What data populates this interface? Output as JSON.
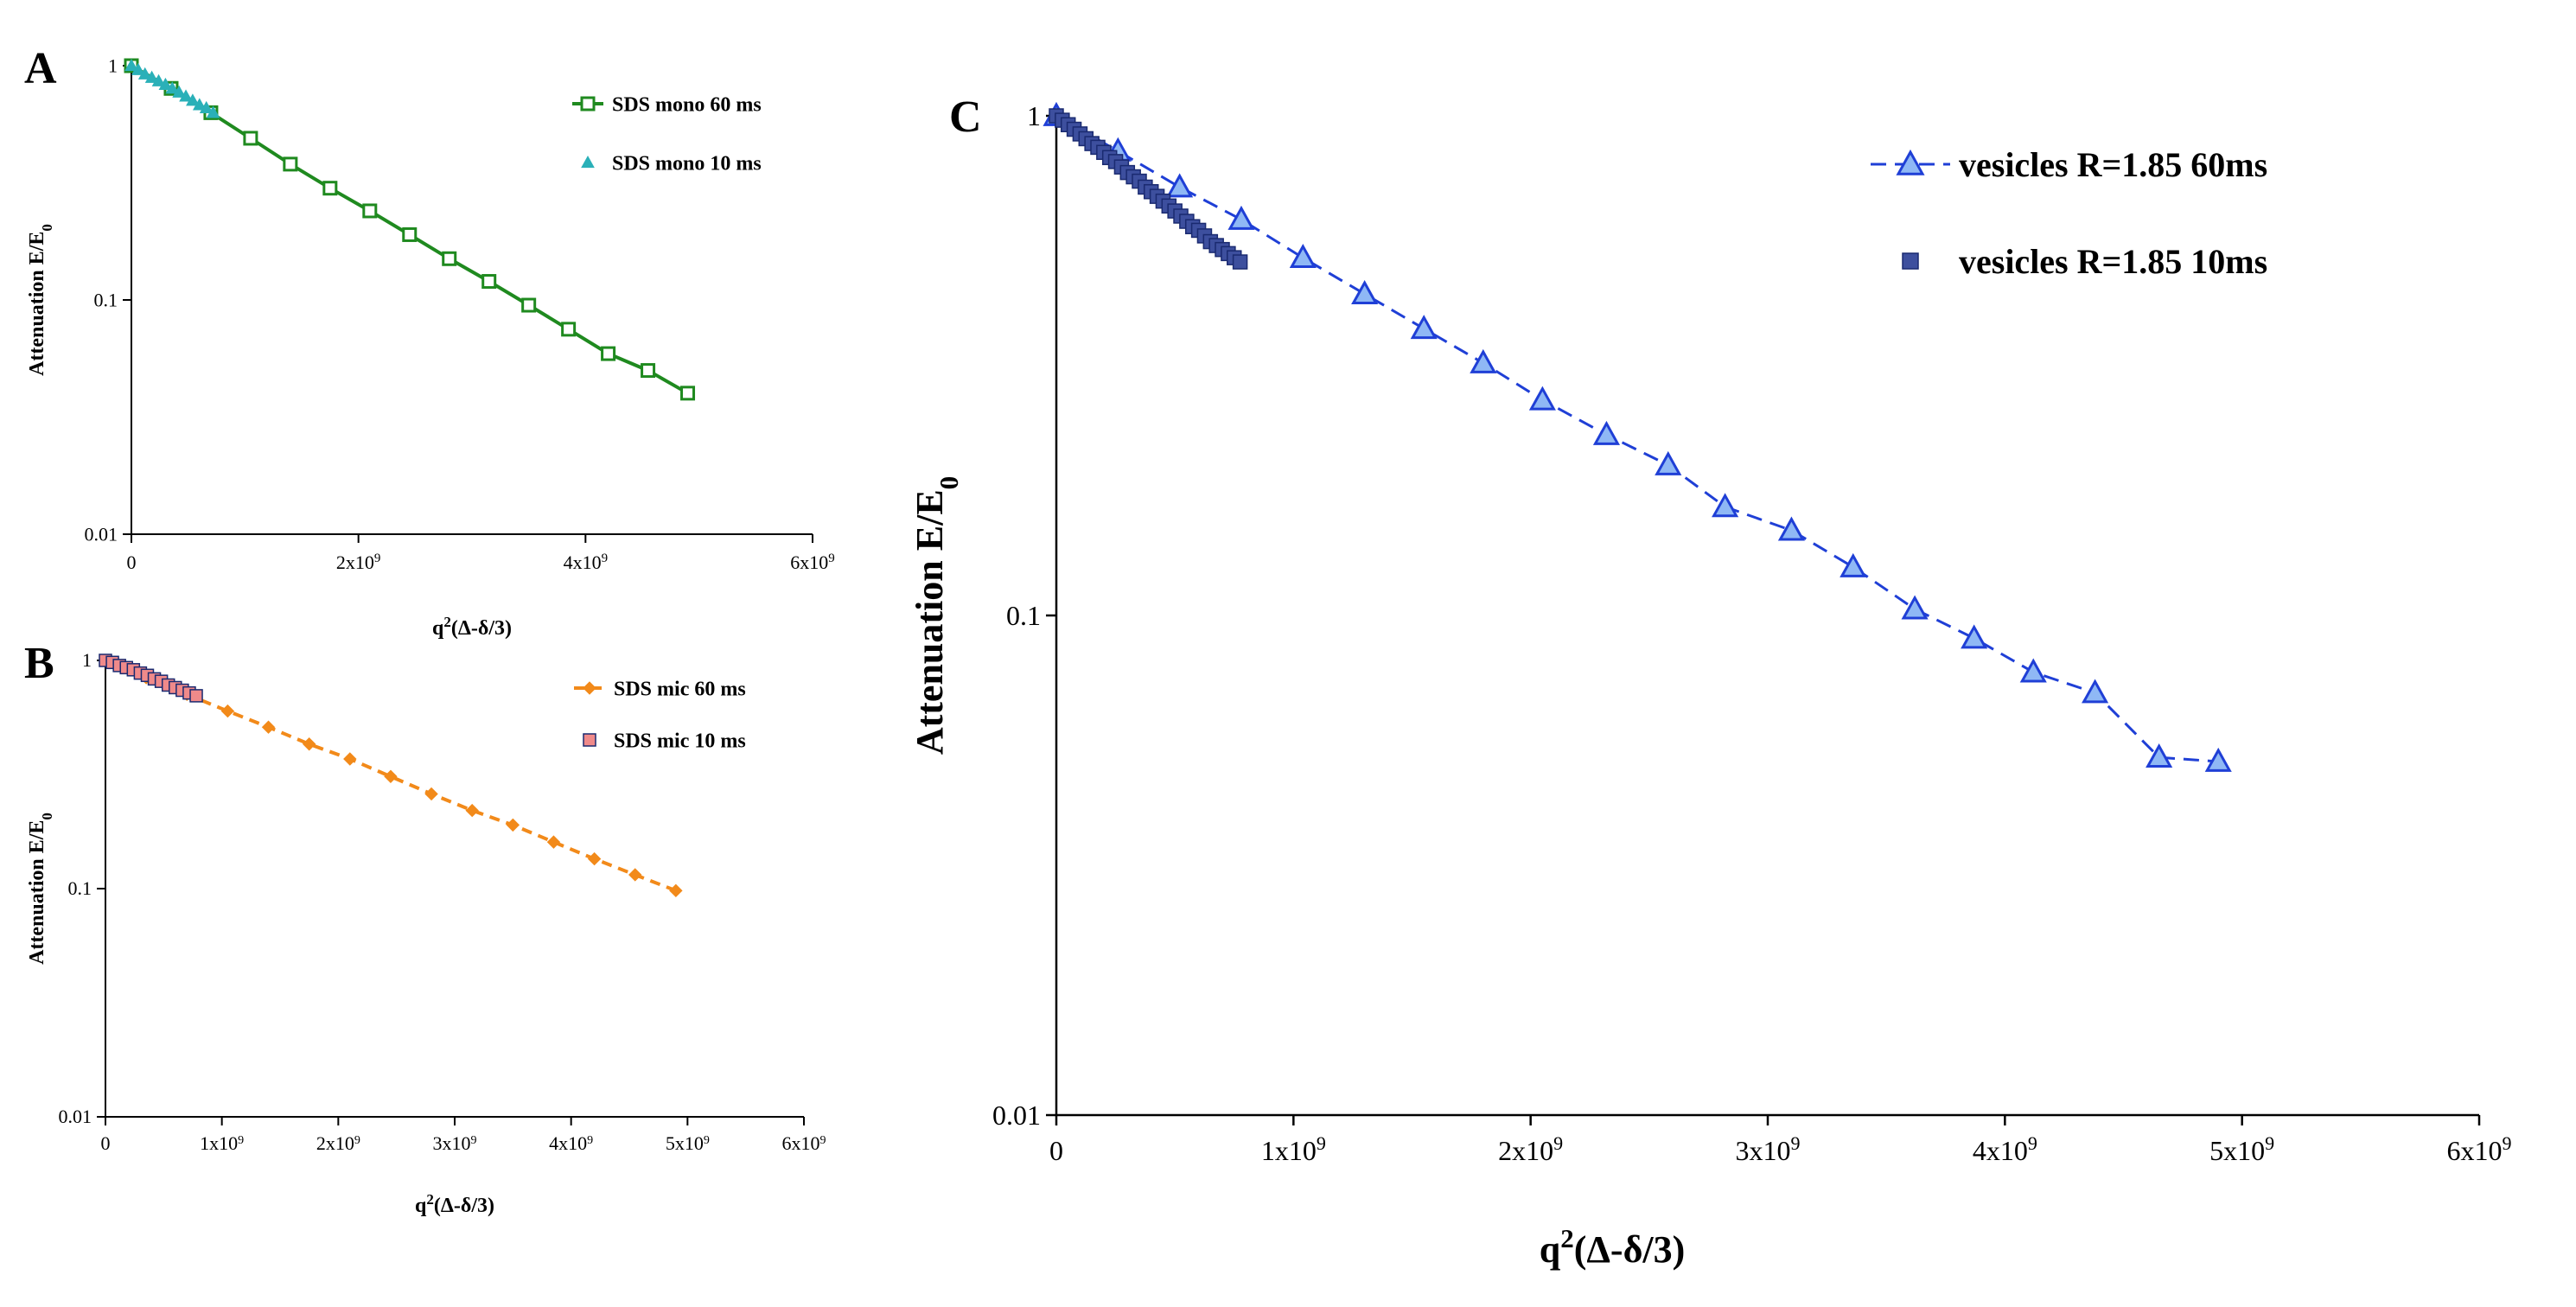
{
  "chart_data": [
    {
      "panel": "A",
      "type": "line",
      "yscale": "log",
      "xlabel": "q²(Δ-δ/3)",
      "ylabel": "Attenuation E/E₀",
      "xlim": [
        0,
        6000000000.0
      ],
      "ylim": [
        0.01,
        1
      ],
      "xtick_values": [
        0,
        2000000000.0,
        4000000000.0,
        6000000000.0
      ],
      "xtick_labels": [
        "0",
        "2x10⁹",
        "4x10⁹",
        "6x10⁹"
      ],
      "ytick_values": [
        0.01,
        0.1,
        1
      ],
      "ytick_labels": [
        "0.01",
        "0.1",
        "1"
      ],
      "legend_position": "top-right",
      "series": [
        {
          "name": "SDS mono 60 ms",
          "color": "#1f8a1f",
          "marker": "square-open",
          "line": "solid",
          "x": [
            0,
            350000000.0,
            700000000.0,
            1050000000.0,
            1400000000.0,
            1750000000.0,
            2100000000.0,
            2450000000.0,
            2800000000.0,
            3150000000.0,
            3500000000.0,
            3850000000.0,
            4200000000.0,
            4550000000.0,
            4900000000.0
          ],
          "y": [
            1,
            0.8,
            0.63,
            0.49,
            0.38,
            0.3,
            0.24,
            0.19,
            0.15,
            0.12,
            0.095,
            0.075,
            0.059,
            0.05,
            0.04
          ]
        },
        {
          "name": "SDS mono 10 ms",
          "color": "#2ab0b8",
          "marker": "triangle",
          "line": "none",
          "x": [
            0,
            60000000.0,
            120000000.0,
            180000000.0,
            240000000.0,
            300000000.0,
            360000000.0,
            420000000.0,
            480000000.0,
            540000000.0,
            600000000.0,
            660000000.0,
            720000000.0
          ],
          "y": [
            1,
            0.96,
            0.92,
            0.89,
            0.86,
            0.83,
            0.8,
            0.77,
            0.74,
            0.71,
            0.68,
            0.66,
            0.63
          ]
        }
      ]
    },
    {
      "panel": "B",
      "type": "line",
      "yscale": "log",
      "xlabel": "q²(Δ-δ/3)",
      "ylabel": "Attenuation E/E₀",
      "xlim": [
        0,
        6000000000.0
      ],
      "ylim": [
        0.01,
        1
      ],
      "xtick_values": [
        0,
        1000000000.0,
        2000000000.0,
        3000000000.0,
        4000000000.0,
        5000000000.0,
        6000000000.0
      ],
      "xtick_labels": [
        "0",
        "1x10⁹",
        "2x10⁹",
        "3x10⁹",
        "4x10⁹",
        "5x10⁹",
        "6x10⁹"
      ],
      "ytick_values": [
        0.01,
        0.1,
        1
      ],
      "ytick_labels": [
        "0.01",
        "0.1",
        "1"
      ],
      "legend_position": "top-right",
      "series": [
        {
          "name": "SDS mic 60 ms",
          "color": "#f28a1a",
          "marker": "diamond",
          "line": "dashed",
          "x": [
            0,
            350000000.0,
            700000000.0,
            1050000000.0,
            1400000000.0,
            1750000000.0,
            2100000000.0,
            2450000000.0,
            2800000000.0,
            3150000000.0,
            3500000000.0,
            3850000000.0,
            4200000000.0,
            4550000000.0,
            4900000000.0
          ],
          "y": [
            1,
            0.84,
            0.71,
            0.6,
            0.51,
            0.43,
            0.37,
            0.31,
            0.26,
            0.22,
            0.19,
            0.16,
            0.135,
            0.115,
            0.098
          ]
        },
        {
          "name": "SDS mic 10 ms",
          "color": "#f08a8a",
          "marker": "square",
          "line": "none",
          "x": [
            0,
            60000000.0,
            120000000.0,
            180000000.0,
            240000000.0,
            300000000.0,
            360000000.0,
            420000000.0,
            480000000.0,
            540000000.0,
            600000000.0,
            660000000.0,
            720000000.0,
            780000000.0
          ],
          "y": [
            1,
            0.98,
            0.95,
            0.93,
            0.91,
            0.88,
            0.86,
            0.83,
            0.81,
            0.78,
            0.76,
            0.74,
            0.72,
            0.7
          ]
        }
      ]
    },
    {
      "panel": "C",
      "type": "line",
      "yscale": "log",
      "xlabel": "q²(Δ-δ/3)",
      "ylabel": "Attenuation E/E₀",
      "xlim": [
        0,
        6000000000.0
      ],
      "ylim": [
        0.01,
        1
      ],
      "xtick_values": [
        0,
        1000000000.0,
        2000000000.0,
        3000000000.0,
        4000000000.0,
        5000000000.0,
        6000000000.0
      ],
      "xtick_labels": [
        "0",
        "1x10⁹",
        "2x10⁹",
        "3x10⁹",
        "4x10⁹",
        "5x10⁹",
        "6x10⁹"
      ],
      "ytick_values": [
        0.01,
        0.1,
        1
      ],
      "ytick_labels": [
        "0.01",
        "0.1",
        "1"
      ],
      "legend_position": "top-right",
      "series": [
        {
          "name": "vesicles R=1.85 60ms",
          "color": "#1f3fd6",
          "marker": "triangle-light",
          "line": "dashed",
          "x": [
            0,
            260000000.0,
            520000000.0,
            780000000.0,
            1040000000.0,
            1300000000.0,
            1550000000.0,
            1800000000.0,
            2050000000.0,
            2320000000.0,
            2580000000.0,
            2820000000.0,
            3100000000.0,
            3360000000.0,
            3620000000.0,
            3870000000.0,
            4120000000.0,
            4380000000.0,
            4650000000.0,
            4900000000.0
          ],
          "y": [
            1,
            0.85,
            0.72,
            0.62,
            0.52,
            0.44,
            0.375,
            0.32,
            0.27,
            0.23,
            0.2,
            0.165,
            0.148,
            0.125,
            0.103,
            0.09,
            0.077,
            0.07,
            0.052,
            0.051
          ]
        },
        {
          "name": "vesicles R=1.85 10ms",
          "color": "#3d4f9e",
          "marker": "square",
          "line": "none",
          "x": [
            0,
            25000000.0,
            50000000.0,
            75000000.0,
            100000000.0,
            125000000.0,
            150000000.0,
            175000000.0,
            200000000.0,
            225000000.0,
            250000000.0,
            275000000.0,
            300000000.0,
            325000000.0,
            350000000.0,
            375000000.0,
            400000000.0,
            425000000.0,
            450000000.0,
            475000000.0,
            500000000.0,
            525000000.0,
            550000000.0,
            575000000.0,
            600000000.0,
            625000000.0,
            650000000.0,
            675000000.0,
            700000000.0,
            725000000.0,
            750000000.0,
            775000000.0
          ],
          "y": [
            1,
            0.98,
            0.96,
            0.94,
            0.92,
            0.9,
            0.88,
            0.865,
            0.845,
            0.825,
            0.81,
            0.79,
            0.77,
            0.755,
            0.74,
            0.72,
            0.705,
            0.69,
            0.675,
            0.66,
            0.645,
            0.63,
            0.615,
            0.6,
            0.59,
            0.575,
            0.56,
            0.55,
            0.54,
            0.53,
            0.52,
            0.51
          ]
        }
      ]
    }
  ],
  "panel_labels": {
    "a": "A",
    "b": "B",
    "c": "C"
  }
}
